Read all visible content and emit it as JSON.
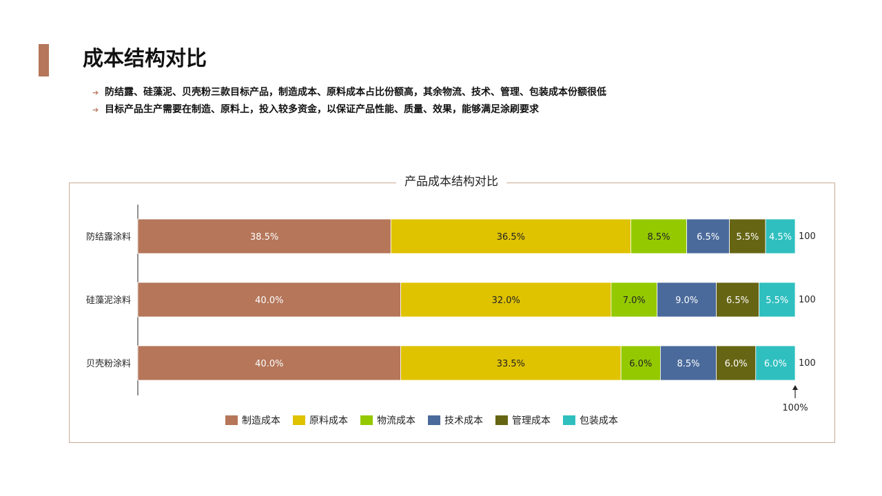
{
  "page": {
    "title": "成本结构对比",
    "bullets": [
      "防结露、硅藻泥、贝壳粉三款目标产品，制造成本、原料成本占比份额高，其余物流、技术、管理、包装成本份额很低",
      "目标产品生产需要在制造、原料上，投入较多资金，以保证产品性能、质量、效果，能够满足涂刷要求"
    ],
    "accent_color": "#b5765a"
  },
  "chart_data": {
    "type": "bar",
    "orientation": "horizontal",
    "stacked": "percent",
    "title": "产品成本结构对比",
    "categories": [
      "防结露涂料",
      "硅藻泥涂料",
      "贝壳粉涂料"
    ],
    "series": [
      {
        "name": "制造成本",
        "color": "#b5765a",
        "values": [
          38.5,
          40.0,
          40.0
        ],
        "labels": [
          "38.5%",
          "40.0%",
          "40.0%"
        ]
      },
      {
        "name": "原料成本",
        "color": "#dfc200",
        "values": [
          36.5,
          32.0,
          33.5
        ],
        "labels": [
          "36.5%",
          "32.0%",
          "33.5%"
        ]
      },
      {
        "name": "物流成本",
        "color": "#94c900",
        "values": [
          8.5,
          7.0,
          6.0
        ],
        "labels": [
          "8.5%",
          "7.0%",
          "6.0%"
        ]
      },
      {
        "name": "技术成本",
        "color": "#4a6a9b",
        "values": [
          6.5,
          9.0,
          8.5
        ],
        "labels": [
          "6.5%",
          "9.0%",
          "8.5%"
        ]
      },
      {
        "name": "管理成本",
        "color": "#666514",
        "values": [
          5.5,
          6.5,
          6.0
        ],
        "labels": [
          "5.5%",
          "6.5%",
          "6.0%"
        ]
      },
      {
        "name": "包装成本",
        "color": "#2fbfbf",
        "values": [
          4.5,
          5.5,
          6.0
        ],
        "labels": [
          "4.5%",
          "5.5%",
          "6.0%"
        ]
      }
    ],
    "totals": [
      "100",
      "100",
      "100"
    ],
    "end_marker_label": "100%",
    "legend_position": "bottom"
  }
}
